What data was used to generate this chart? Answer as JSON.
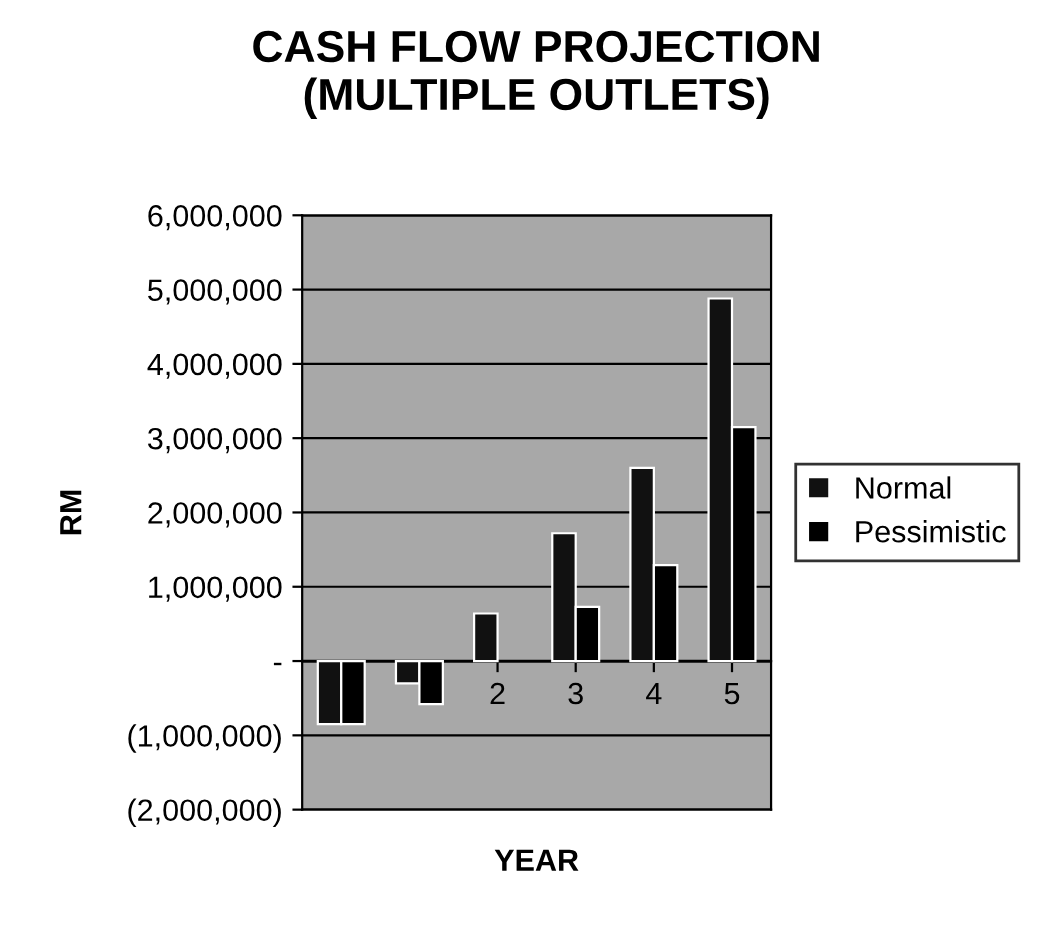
{
  "chart_data": {
    "type": "bar",
    "title": "CASH FLOW PROJECTION\n(MULTIPLE OUTLETS)",
    "xlabel": "YEAR",
    "ylabel": "RM",
    "categories": [
      null,
      null,
      "2",
      "3",
      "4",
      "5"
    ],
    "series": [
      {
        "name": "Normal",
        "color": "#111111",
        "values": [
          -850000,
          -300000,
          640000,
          1720000,
          2600000,
          4880000
        ]
      },
      {
        "name": "Pessimistic",
        "color": "#000000",
        "values": [
          -850000,
          -580000,
          null,
          730000,
          1290000,
          3150000
        ]
      }
    ],
    "ylim": [
      -2000000,
      6000000
    ],
    "yticks": [
      {
        "value": -2000000,
        "label": "(2,000,000)"
      },
      {
        "value": -1000000,
        "label": "(1,000,000)"
      },
      {
        "value": 0,
        "label": "-"
      },
      {
        "value": 1000000,
        "label": "1,000,000"
      },
      {
        "value": 2000000,
        "label": "2,000,000"
      },
      {
        "value": 3000000,
        "label": "3,000,000"
      },
      {
        "value": 4000000,
        "label": "4,000,000"
      },
      {
        "value": 5000000,
        "label": "5,000,000"
      },
      {
        "value": 6000000,
        "label": "6,000,000"
      }
    ],
    "grid": "y",
    "legend": "right"
  }
}
